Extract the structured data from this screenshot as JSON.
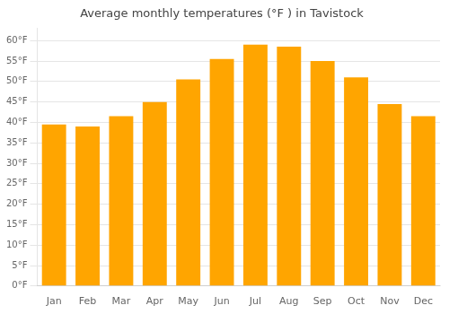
{
  "chart_data": {
    "type": "bar",
    "title": "Average monthly temperatures (°F ) in Tavistock",
    "categories": [
      "Jan",
      "Feb",
      "Mar",
      "Apr",
      "May",
      "Jun",
      "Jul",
      "Aug",
      "Sep",
      "Oct",
      "Nov",
      "Dec"
    ],
    "values": [
      39.5,
      39.0,
      41.5,
      45.0,
      50.5,
      55.5,
      59.0,
      58.5,
      55.0,
      51.0,
      44.5,
      41.5
    ],
    "color": "#FFA500",
    "ylim": [
      0,
      63
    ],
    "yticks": [
      {
        "value": 0,
        "label": "0°F"
      },
      {
        "value": 5,
        "label": "5°F"
      },
      {
        "value": 10,
        "label": "10°F"
      },
      {
        "value": 15,
        "label": "15°F"
      },
      {
        "value": 20,
        "label": "20°F"
      },
      {
        "value": 25,
        "label": "25°F"
      },
      {
        "value": 30,
        "label": "30°F"
      },
      {
        "value": 35,
        "label": "35°F"
      },
      {
        "value": 40,
        "label": "40°F"
      },
      {
        "value": 45,
        "label": "45°F"
      },
      {
        "value": 50,
        "label": "50°F"
      },
      {
        "value": 55,
        "label": "55°F"
      },
      {
        "value": 60,
        "label": "60°F"
      }
    ],
    "grid": true
  }
}
